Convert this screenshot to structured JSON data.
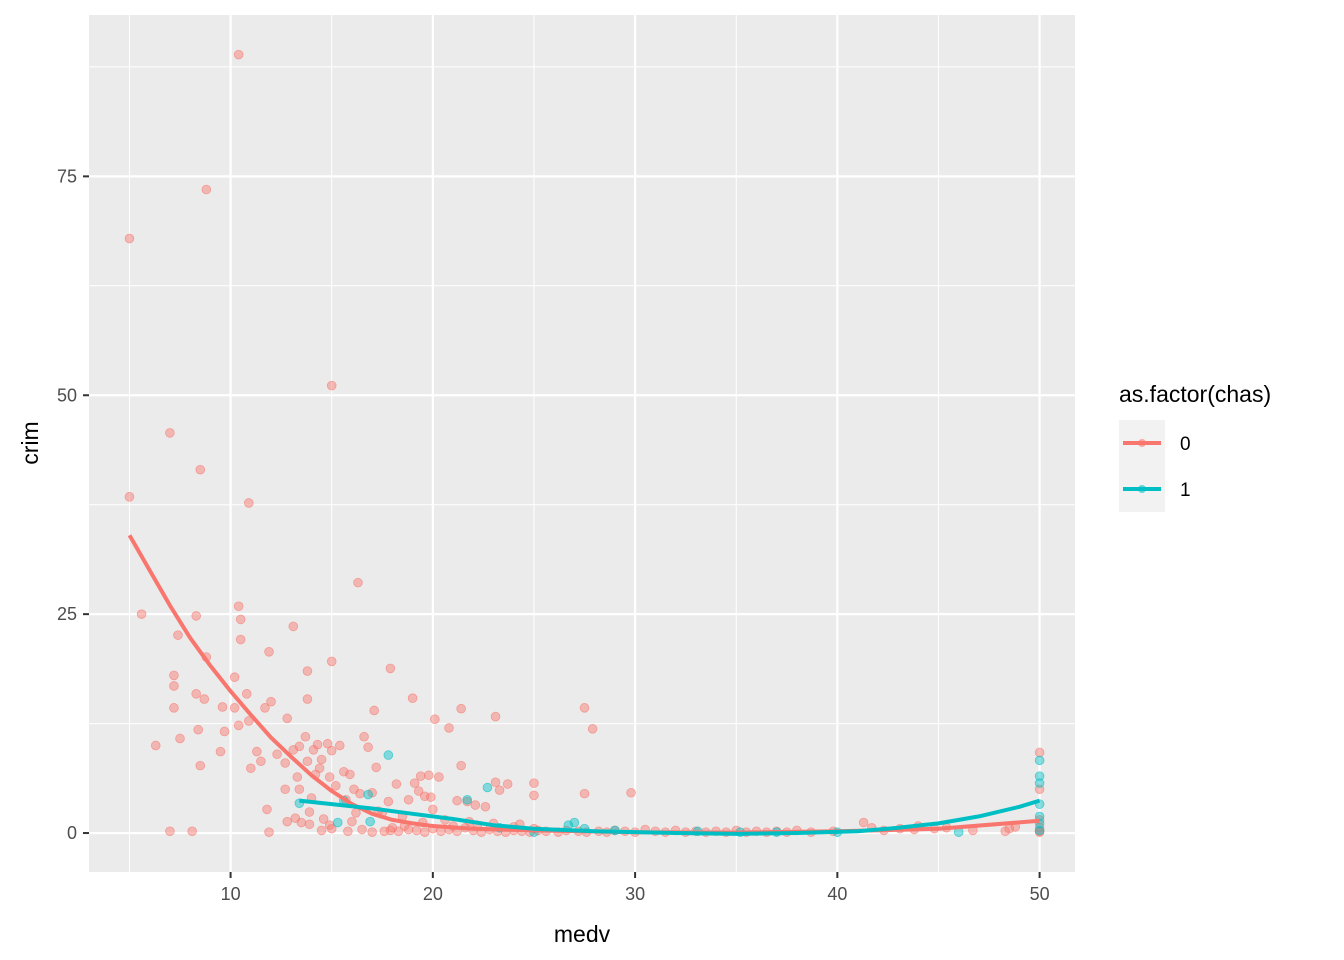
{
  "chart_data": {
    "type": "scatter",
    "title": "",
    "xlabel": "medv",
    "ylabel": "crim",
    "xlim": [
      3.0,
      51.75
    ],
    "ylim": [
      -4.45,
      93.43
    ],
    "x_ticks": [
      10,
      20,
      30,
      40,
      50
    ],
    "y_ticks": [
      0,
      25,
      50,
      75
    ],
    "x_tick_labels": [
      "10",
      "20",
      "30",
      "40",
      "50"
    ],
    "y_tick_labels": [
      "0",
      "25",
      "50",
      "75"
    ],
    "grid": true,
    "legend": {
      "title": "as.factor(chas)",
      "position": "right",
      "entries": [
        "0",
        "1"
      ]
    },
    "series": [
      {
        "name": "0",
        "color": "#F8766D",
        "points": [
          [
            5.0,
            67.9
          ],
          [
            5.0,
            38.4
          ],
          [
            5.6,
            25.0
          ],
          [
            6.3,
            10.0
          ],
          [
            7.0,
            45.7
          ],
          [
            7.0,
            0.2
          ],
          [
            7.2,
            18.0
          ],
          [
            7.2,
            16.8
          ],
          [
            7.2,
            14.3
          ],
          [
            7.4,
            22.6
          ],
          [
            7.5,
            10.8
          ],
          [
            8.1,
            0.2
          ],
          [
            8.3,
            24.8
          ],
          [
            8.3,
            15.9
          ],
          [
            8.4,
            11.8
          ],
          [
            8.5,
            41.5
          ],
          [
            8.5,
            7.7
          ],
          [
            8.7,
            15.3
          ],
          [
            8.8,
            73.5
          ],
          [
            8.8,
            20.1
          ],
          [
            9.5,
            9.3
          ],
          [
            9.6,
            14.4
          ],
          [
            9.7,
            11.6
          ],
          [
            10.2,
            17.8
          ],
          [
            10.2,
            14.3
          ],
          [
            10.4,
            88.9
          ],
          [
            10.4,
            25.9
          ],
          [
            10.5,
            24.4
          ],
          [
            10.5,
            22.1
          ],
          [
            10.4,
            12.3
          ],
          [
            10.8,
            15.9
          ],
          [
            10.9,
            37.7
          ],
          [
            10.9,
            12.8
          ],
          [
            11.0,
            7.4
          ],
          [
            11.3,
            9.3
          ],
          [
            11.5,
            8.2
          ],
          [
            11.7,
            14.3
          ],
          [
            11.8,
            2.7
          ],
          [
            11.9,
            20.7
          ],
          [
            11.9,
            0.1
          ],
          [
            12.0,
            15.0
          ],
          [
            12.3,
            9.0
          ],
          [
            12.7,
            5.0
          ],
          [
            12.7,
            8.0
          ],
          [
            12.8,
            13.1
          ],
          [
            12.8,
            1.3
          ],
          [
            13.1,
            23.6
          ],
          [
            13.1,
            9.5
          ],
          [
            13.2,
            1.7
          ],
          [
            13.3,
            6.4
          ],
          [
            13.4,
            9.9
          ],
          [
            13.4,
            5.0
          ],
          [
            13.5,
            1.2
          ],
          [
            13.7,
            11.0
          ],
          [
            13.8,
            8.2
          ],
          [
            13.8,
            18.5
          ],
          [
            13.8,
            15.3
          ],
          [
            13.9,
            2.4
          ],
          [
            14.0,
            4.0
          ],
          [
            14.1,
            9.5
          ],
          [
            14.2,
            6.7
          ],
          [
            14.3,
            10.1
          ],
          [
            14.4,
            7.4
          ],
          [
            14.5,
            8.4
          ],
          [
            14.6,
            1.6
          ],
          [
            14.8,
            10.2
          ],
          [
            14.9,
            0.9
          ],
          [
            14.9,
            6.4
          ],
          [
            15.0,
            51.1
          ],
          [
            15.0,
            19.6
          ],
          [
            15.0,
            9.4
          ],
          [
            15.2,
            5.4
          ],
          [
            15.4,
            10.0
          ],
          [
            15.6,
            7.0
          ],
          [
            15.7,
            3.8
          ],
          [
            15.9,
            6.7
          ],
          [
            16.1,
            5.0
          ],
          [
            16.2,
            2.3
          ],
          [
            16.3,
            28.6
          ],
          [
            16.4,
            4.5
          ],
          [
            16.6,
            11.0
          ],
          [
            16.8,
            9.8
          ],
          [
            17.0,
            4.6
          ],
          [
            17.1,
            14.0
          ],
          [
            17.2,
            7.5
          ],
          [
            17.3,
            2.5
          ],
          [
            17.5,
            2.3
          ],
          [
            17.8,
            3.6
          ],
          [
            17.9,
            18.8
          ],
          [
            18.2,
            5.6
          ],
          [
            18.5,
            1.9
          ],
          [
            18.8,
            3.8
          ],
          [
            19.0,
            15.4
          ],
          [
            19.1,
            5.7
          ],
          [
            19.3,
            4.8
          ],
          [
            19.4,
            6.5
          ],
          [
            19.6,
            4.2
          ],
          [
            19.8,
            6.6
          ],
          [
            19.9,
            4.1
          ],
          [
            20.0,
            2.7
          ],
          [
            20.1,
            13.0
          ],
          [
            20.3,
            6.4
          ],
          [
            20.8,
            12.0
          ],
          [
            21.2,
            3.7
          ],
          [
            21.4,
            14.2
          ],
          [
            21.4,
            7.7
          ],
          [
            21.7,
            3.6
          ],
          [
            22.1,
            3.2
          ],
          [
            22.6,
            3.0
          ],
          [
            23.1,
            13.3
          ],
          [
            23.1,
            5.8
          ],
          [
            23.3,
            4.9
          ],
          [
            23.7,
            5.6
          ],
          [
            24.3,
            1.0
          ],
          [
            25.0,
            5.7
          ],
          [
            25.0,
            4.3
          ],
          [
            27.5,
            14.3
          ],
          [
            27.9,
            11.9
          ],
          [
            27.5,
            4.5
          ],
          [
            29.8,
            4.6
          ],
          [
            17.9,
            0.3
          ],
          [
            18.3,
            0.2
          ],
          [
            18.8,
            0.4
          ],
          [
            19.2,
            0.3
          ],
          [
            19.6,
            0.1
          ],
          [
            20.0,
            0.5
          ],
          [
            20.4,
            0.2
          ],
          [
            20.8,
            0.4
          ],
          [
            21.2,
            0.2
          ],
          [
            21.6,
            0.6
          ],
          [
            22.0,
            0.3
          ],
          [
            22.4,
            0.1
          ],
          [
            22.8,
            0.4
          ],
          [
            23.2,
            0.2
          ],
          [
            23.6,
            0.1
          ],
          [
            24.0,
            0.3
          ],
          [
            24.4,
            0.2
          ],
          [
            24.8,
            0.1
          ],
          [
            25.2,
            0.3
          ],
          [
            25.6,
            0.2
          ],
          [
            26.2,
            0.1
          ],
          [
            26.6,
            0.3
          ],
          [
            27.2,
            0.2
          ],
          [
            27.6,
            0.1
          ],
          [
            28.2,
            0.2
          ],
          [
            28.6,
            0.1
          ],
          [
            29.0,
            0.3
          ],
          [
            29.5,
            0.2
          ],
          [
            30.0,
            0.1
          ],
          [
            30.5,
            0.4
          ],
          [
            31.0,
            0.2
          ],
          [
            31.5,
            0.1
          ],
          [
            32.0,
            0.3
          ],
          [
            32.5,
            0.1
          ],
          [
            33.0,
            0.2
          ],
          [
            33.5,
            0.1
          ],
          [
            34.0,
            0.2
          ],
          [
            34.5,
            0.1
          ],
          [
            35.0,
            0.3
          ],
          [
            35.5,
            0.1
          ],
          [
            36.0,
            0.2
          ],
          [
            36.5,
            0.1
          ],
          [
            37.0,
            0.2
          ],
          [
            37.5,
            0.1
          ],
          [
            38.0,
            0.3
          ],
          [
            38.7,
            0.1
          ],
          [
            39.8,
            0.2
          ],
          [
            41.3,
            1.2
          ],
          [
            41.7,
            0.6
          ],
          [
            42.3,
            0.3
          ],
          [
            43.1,
            0.5
          ],
          [
            43.8,
            0.4
          ],
          [
            44.0,
            0.8
          ],
          [
            44.8,
            0.5
          ],
          [
            45.4,
            0.6
          ],
          [
            46.7,
            0.3
          ],
          [
            48.3,
            0.2
          ],
          [
            48.5,
            0.5
          ],
          [
            48.8,
            0.7
          ],
          [
            50.0,
            9.2
          ],
          [
            50.0,
            5.0
          ],
          [
            50.0,
            1.5
          ],
          [
            50.0,
            0.6
          ],
          [
            50.0,
            0.2
          ],
          [
            50.0,
            0.1
          ],
          [
            18.0,
            0.6
          ],
          [
            18.6,
            0.8
          ],
          [
            19.5,
            1.2
          ],
          [
            20.6,
            1.5
          ],
          [
            21.0,
            0.8
          ],
          [
            21.8,
            1.3
          ],
          [
            22.2,
            0.9
          ],
          [
            23.0,
            1.1
          ],
          [
            24.0,
            0.7
          ],
          [
            25.0,
            0.5
          ],
          [
            14.5,
            0.3
          ],
          [
            15.0,
            0.5
          ],
          [
            15.8,
            0.2
          ],
          [
            16.5,
            0.4
          ],
          [
            17.0,
            0.1
          ],
          [
            17.6,
            0.2
          ],
          [
            13.9,
            1.0
          ],
          [
            16.0,
            1.3
          ]
        ],
        "smooth": [
          [
            5.0,
            34.0
          ],
          [
            6.0,
            30.0
          ],
          [
            7.0,
            26.0
          ],
          [
            8.0,
            22.3
          ],
          [
            9.0,
            19.1
          ],
          [
            10.0,
            16.2
          ],
          [
            11.0,
            13.5
          ],
          [
            12.0,
            10.9
          ],
          [
            13.0,
            8.7
          ],
          [
            14.0,
            6.6
          ],
          [
            15.0,
            4.8
          ],
          [
            16.0,
            3.3
          ],
          [
            17.0,
            2.2
          ],
          [
            18.0,
            1.5
          ],
          [
            19.0,
            1.1
          ],
          [
            20.0,
            0.8
          ],
          [
            22.0,
            0.5
          ],
          [
            25.0,
            0.3
          ],
          [
            30.0,
            0.1
          ],
          [
            35.0,
            0.05
          ],
          [
            40.0,
            0.2
          ],
          [
            45.0,
            0.5
          ],
          [
            50.0,
            1.4
          ]
        ]
      },
      {
        "name": "1",
        "color": "#00BFC4",
        "points": [
          [
            13.4,
            3.4
          ],
          [
            15.3,
            1.2
          ],
          [
            15.6,
            3.7
          ],
          [
            16.8,
            4.4
          ],
          [
            16.9,
            1.3
          ],
          [
            17.8,
            8.9
          ],
          [
            21.7,
            3.8
          ],
          [
            22.7,
            5.2
          ],
          [
            23.3,
            0.6
          ],
          [
            25.0,
            0.1
          ],
          [
            26.7,
            0.9
          ],
          [
            27.0,
            1.2
          ],
          [
            27.5,
            0.5
          ],
          [
            29.0,
            0.3
          ],
          [
            33.1,
            0.2
          ],
          [
            35.2,
            0.1
          ],
          [
            37.0,
            0.1
          ],
          [
            40.0,
            0.1
          ],
          [
            46.0,
            0.1
          ],
          [
            50.0,
            8.3
          ],
          [
            50.0,
            6.5
          ],
          [
            50.0,
            5.7
          ],
          [
            50.0,
            3.3
          ],
          [
            50.0,
            1.9
          ],
          [
            50.0,
            1.1
          ],
          [
            50.0,
            0.3
          ]
        ],
        "smooth": [
          [
            13.4,
            3.7
          ],
          [
            15.0,
            3.3
          ],
          [
            17.0,
            2.8
          ],
          [
            19.0,
            2.2
          ],
          [
            21.0,
            1.6
          ],
          [
            23.0,
            0.9
          ],
          [
            25.0,
            0.5
          ],
          [
            28.0,
            0.2
          ],
          [
            32.0,
            0.0
          ],
          [
            35.0,
            -0.1
          ],
          [
            38.0,
            0.0
          ],
          [
            41.0,
            0.2
          ],
          [
            43.0,
            0.6
          ],
          [
            45.0,
            1.1
          ],
          [
            47.0,
            1.9
          ],
          [
            49.0,
            3.0
          ],
          [
            50.0,
            3.7
          ]
        ]
      }
    ]
  }
}
